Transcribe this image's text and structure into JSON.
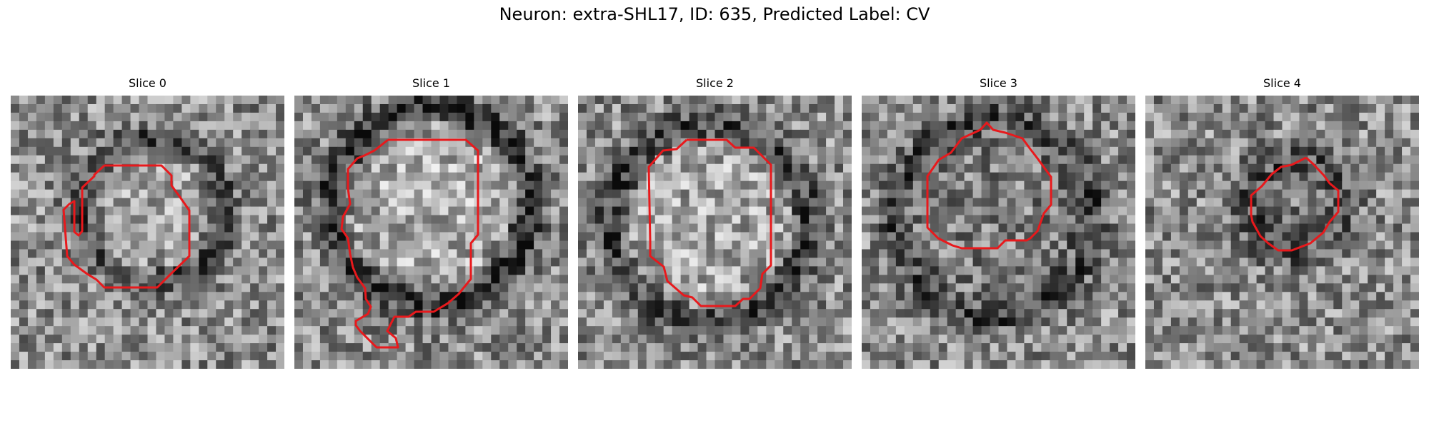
{
  "figure": {
    "title": "Neuron: extra-SHL17, ID: 635, Predicted Label: CV"
  },
  "overlay_color": "#e8191c",
  "panels": [
    {
      "title": "Slice 0"
    },
    {
      "title": "Slice 1"
    },
    {
      "title": "Slice 2"
    },
    {
      "title": "Slice 3"
    },
    {
      "title": "Slice 4"
    }
  ]
}
